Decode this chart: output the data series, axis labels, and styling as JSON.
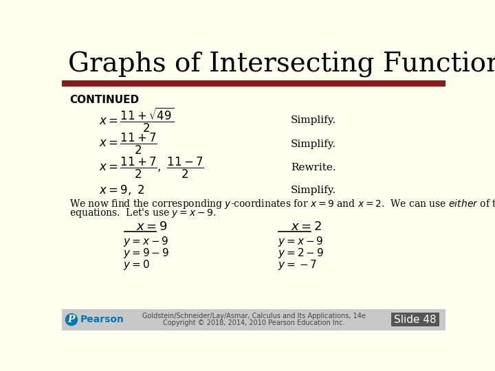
{
  "title": "Graphs of Intersecting Functions",
  "title_bg": "#fffff0",
  "title_color": "#000000",
  "title_fontsize": 28,
  "header_bar_color": "#8b1a1a",
  "body_bg": "#fffff0",
  "continued_label": "CONTINUED",
  "footer_line1": "Goldstein/Schneider/Lay/Asmar, Calculus and Its Applications, 14e",
  "footer_line2": "Copyright © 2018, 2014, 2010 Pearson Education Inc.",
  "slide_label": "Slide 48"
}
